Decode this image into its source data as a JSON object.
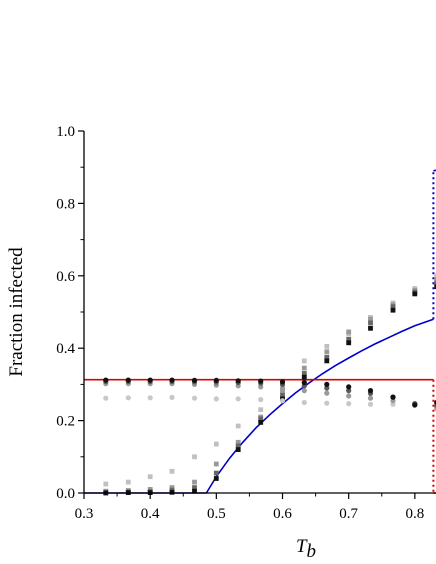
{
  "chart_data": {
    "type": "scatter",
    "title": "",
    "xlabel_main": "T",
    "xlabel_sub": "b",
    "ylabel": "Fraction infected",
    "xlim": [
      0.3,
      0.85
    ],
    "ylim": [
      0.0,
      1.0
    ],
    "x_ticks": [
      "0.3",
      "0.4",
      "0.5",
      "0.6",
      "0.7",
      "0.8"
    ],
    "y_ticks": [
      "0.0",
      "0.2",
      "0.4",
      "0.6",
      "0.8",
      "1.0"
    ],
    "grid": false,
    "legend": "none",
    "lines": [
      {
        "color": "#0000cc",
        "style": "solid",
        "points": [
          [
            0.3,
            0.0
          ],
          [
            0.485,
            0.0
          ],
          [
            0.5,
            0.045
          ],
          [
            0.52,
            0.096
          ],
          [
            0.54,
            0.14
          ],
          [
            0.56,
            0.18
          ],
          [
            0.58,
            0.215
          ],
          [
            0.6,
            0.247
          ],
          [
            0.62,
            0.277
          ],
          [
            0.64,
            0.304
          ],
          [
            0.66,
            0.329
          ],
          [
            0.68,
            0.352
          ],
          [
            0.7,
            0.373
          ],
          [
            0.72,
            0.393
          ],
          [
            0.74,
            0.412
          ],
          [
            0.76,
            0.429
          ],
          [
            0.78,
            0.446
          ],
          [
            0.8,
            0.462
          ],
          [
            0.828,
            0.48
          ]
        ]
      },
      {
        "color": "#0000cc",
        "style": "dotted",
        "points": [
          [
            0.828,
            0.48
          ],
          [
            0.828,
            0.89
          ]
        ]
      },
      {
        "color": "#0000cc",
        "style": "solid",
        "points": [
          [
            0.828,
            0.89
          ],
          [
            0.85,
            0.898
          ]
        ]
      },
      {
        "color": "#dd0000",
        "style": "solid",
        "points": [
          [
            0.3,
            0.313
          ],
          [
            0.828,
            0.313
          ]
        ]
      },
      {
        "color": "#dd0000",
        "style": "dotted",
        "points": [
          [
            0.828,
            0.313
          ],
          [
            0.828,
            0.0
          ]
        ]
      },
      {
        "color": "#dd0000",
        "style": "solid",
        "points": [
          [
            0.828,
            0.0
          ],
          [
            0.85,
            0.0
          ]
        ]
      }
    ],
    "series": [
      {
        "marker": "square",
        "color": "#c0c0c0",
        "x": [
          0.333,
          0.367,
          0.4,
          0.433,
          0.467,
          0.5,
          0.533,
          0.567,
          0.6,
          0.633,
          0.667,
          0.7,
          0.733,
          0.767,
          0.8,
          0.833
        ],
        "y": [
          0.025,
          0.03,
          0.045,
          0.06,
          0.1,
          0.135,
          0.185,
          0.23,
          0.29,
          0.365,
          0.405,
          0.44,
          0.485,
          0.525,
          0.565,
          0.6
        ]
      },
      {
        "marker": "square",
        "color": "#999999",
        "x": [
          0.333,
          0.367,
          0.4,
          0.433,
          0.467,
          0.5,
          0.533,
          0.567,
          0.6,
          0.633,
          0.667,
          0.7,
          0.733,
          0.767,
          0.8,
          0.833
        ],
        "y": [
          0.005,
          0.007,
          0.01,
          0.015,
          0.03,
          0.08,
          0.14,
          0.21,
          0.28,
          0.345,
          0.39,
          0.445,
          0.48,
          0.52,
          0.56,
          0.59
        ]
      },
      {
        "marker": "square",
        "color": "#666666",
        "x": [
          0.333,
          0.367,
          0.4,
          0.433,
          0.467,
          0.5,
          0.533,
          0.567,
          0.6,
          0.633,
          0.667,
          0.7,
          0.733,
          0.767,
          0.8,
          0.833
        ],
        "y": [
          0.002,
          0.003,
          0.004,
          0.008,
          0.015,
          0.055,
          0.13,
          0.205,
          0.27,
          0.33,
          0.375,
          0.425,
          0.47,
          0.515,
          0.555,
          0.58
        ]
      },
      {
        "marker": "square",
        "color": "#111111",
        "x": [
          0.333,
          0.367,
          0.4,
          0.433,
          0.467,
          0.5,
          0.533,
          0.567,
          0.6,
          0.633,
          0.667,
          0.7,
          0.733,
          0.767,
          0.8,
          0.833
        ],
        "y": [
          0.0,
          0.001,
          0.001,
          0.002,
          0.005,
          0.04,
          0.12,
          0.195,
          0.26,
          0.32,
          0.365,
          0.415,
          0.455,
          0.505,
          0.55,
          0.57
        ]
      },
      {
        "marker": "circle",
        "color": "#c8c8c8",
        "x": [
          0.333,
          0.367,
          0.4,
          0.433,
          0.467,
          0.5,
          0.533,
          0.567,
          0.6,
          0.633,
          0.667,
          0.7,
          0.733,
          0.767,
          0.8,
          0.833
        ],
        "y": [
          0.262,
          0.263,
          0.263,
          0.264,
          0.262,
          0.26,
          0.26,
          0.258,
          0.255,
          0.25,
          0.248,
          0.247,
          0.245,
          0.245,
          0.243,
          0.232
        ]
      },
      {
        "marker": "circle",
        "color": "#9a9a9a",
        "x": [
          0.333,
          0.367,
          0.4,
          0.433,
          0.467,
          0.5,
          0.533,
          0.567,
          0.6,
          0.633,
          0.667,
          0.7,
          0.733,
          0.767,
          0.8,
          0.833
        ],
        "y": [
          0.302,
          0.302,
          0.302,
          0.302,
          0.3,
          0.298,
          0.296,
          0.293,
          0.288,
          0.283,
          0.276,
          0.268,
          0.262,
          0.255,
          0.246,
          0.235
        ]
      },
      {
        "marker": "circle",
        "color": "#5a5a5a",
        "x": [
          0.333,
          0.367,
          0.4,
          0.433,
          0.467,
          0.5,
          0.533,
          0.567,
          0.6,
          0.633,
          0.667,
          0.7,
          0.733,
          0.767,
          0.8,
          0.833
        ],
        "y": [
          0.308,
          0.308,
          0.308,
          0.308,
          0.307,
          0.306,
          0.305,
          0.303,
          0.3,
          0.296,
          0.29,
          0.283,
          0.275,
          0.265,
          0.247,
          0.242
        ]
      },
      {
        "marker": "circle",
        "color": "#111111",
        "x": [
          0.333,
          0.367,
          0.4,
          0.433,
          0.467,
          0.5,
          0.533,
          0.567,
          0.6,
          0.633,
          0.667,
          0.7,
          0.733,
          0.767,
          0.8,
          0.833
        ],
        "y": [
          0.312,
          0.312,
          0.312,
          0.312,
          0.311,
          0.311,
          0.31,
          0.309,
          0.307,
          0.305,
          0.3,
          0.293,
          0.283,
          0.265,
          0.243,
          0.25
        ]
      }
    ]
  }
}
